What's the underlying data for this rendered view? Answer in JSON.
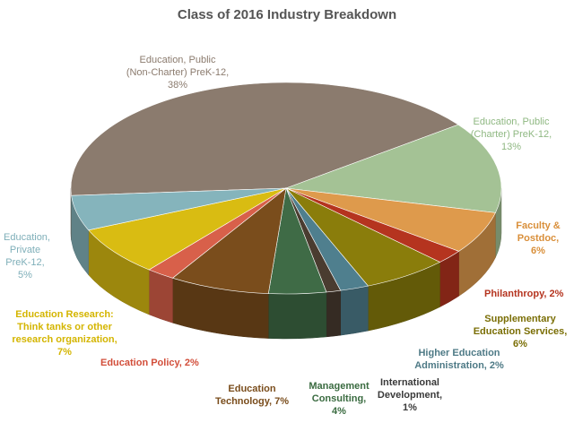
{
  "chart_data": {
    "type": "pie",
    "title": "Class of  2016 Industry Breakdown",
    "series": [
      {
        "key": "public-non-charter",
        "name": "Education, Public (Non-Charter) PreK-12",
        "value": 38,
        "label_lines": [
          "Education, Public",
          "(Non-Charter) PreK-12,",
          "38%"
        ],
        "color": "#8B7B6E",
        "label_color": "#8B7B6E"
      },
      {
        "key": "public-charter",
        "name": "Education, Public (Charter) PreK-12",
        "value": 13,
        "label_lines": [
          "Education, Public",
          "(Charter) PreK-12,",
          "13%"
        ],
        "color": "#A4C295",
        "label_color": "#8FB882"
      },
      {
        "key": "faculty-postdoc",
        "name": "Faculty & Postdoc",
        "value": 6,
        "label_lines": [
          "Faculty &",
          "Postdoc,",
          "6%"
        ],
        "color": "#DE9A4C",
        "label_color": "#D98F3A"
      },
      {
        "key": "philanthropy",
        "name": "Philanthropy",
        "value": 2,
        "label_lines": [
          "Philanthropy, 2%"
        ],
        "color": "#B5341F",
        "label_color": "#B5341F"
      },
      {
        "key": "supplementary-education",
        "name": "Supplementary Education Services",
        "value": 6,
        "label_lines": [
          "Supplementary",
          "Education Services,",
          "6%"
        ],
        "color": "#8A7D0B",
        "label_color": "#7A6E05"
      },
      {
        "key": "higher-ed-admin",
        "name": "Higher Education Administration",
        "value": 2,
        "label_lines": [
          "Higher Education",
          "Administration, 2%"
        ],
        "color": "#4F7F8E",
        "label_color": "#4E7A86"
      },
      {
        "key": "international-dev",
        "name": "International Development",
        "value": 1,
        "label_lines": [
          "International",
          "Development,",
          "1%"
        ],
        "color": "#4A3C30",
        "label_color": "#3A3A3A"
      },
      {
        "key": "management-consulting",
        "name": "Management Consulting",
        "value": 4,
        "label_lines": [
          "Management",
          "Consulting,",
          "4%"
        ],
        "color": "#3F6B46",
        "label_color": "#3A6B40"
      },
      {
        "key": "education-technology",
        "name": "Education Technology",
        "value": 7,
        "label_lines": [
          "Education",
          "Technology, 7%"
        ],
        "color": "#7A4D1C",
        "label_color": "#7A4D1C"
      },
      {
        "key": "education-policy",
        "name": "Education Policy",
        "value": 2,
        "label_lines": [
          "Education Policy, 2%"
        ],
        "color": "#D8604A",
        "label_color": "#D24E3A"
      },
      {
        "key": "education-research",
        "name": "Education Research: Think tanks or other research organization",
        "value": 7,
        "label_lines": [
          "Education Research:",
          "Think tanks or other",
          "research organization,",
          "7%"
        ],
        "color": "#D9BC12",
        "label_color": "#D4B500"
      },
      {
        "key": "education-private",
        "name": "Education, Private PreK-12",
        "value": 5,
        "label_lines": [
          "Education,",
          "Private",
          "PreK-12,",
          "5%"
        ],
        "color": "#85B4BC",
        "label_color": "#7FAFB9"
      }
    ]
  }
}
